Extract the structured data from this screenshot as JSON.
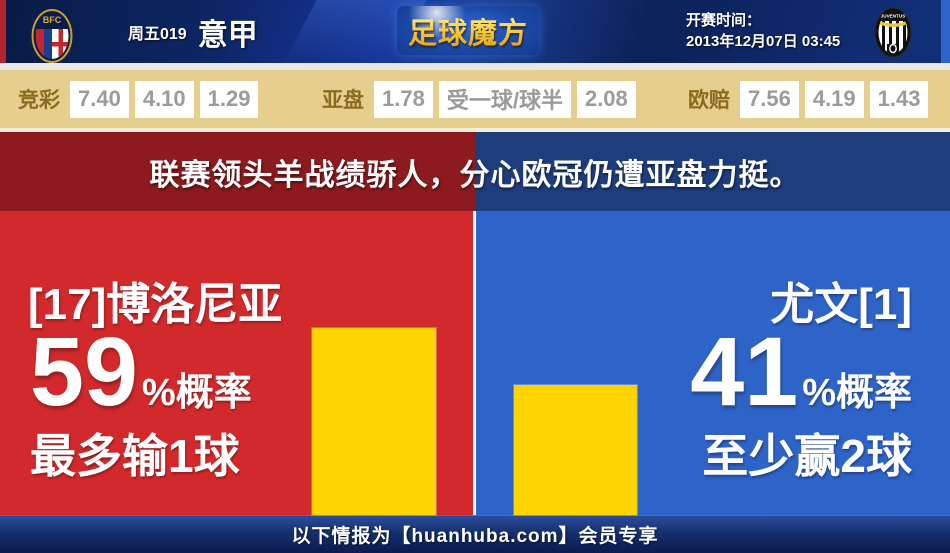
{
  "header": {
    "match_code": "周五019",
    "league": "意甲",
    "brand": "足球魔方",
    "kickoff_label": "开赛时间：",
    "kickoff_datetime": "2013年12月07日 03:45",
    "home_crest_text": "BFC",
    "away_crest_text": "JUVENTUS"
  },
  "odds_bar": {
    "sections": [
      {
        "label": "竞彩",
        "cells": [
          "7.40",
          "4.10",
          "1.29"
        ]
      },
      {
        "label": "亚盘",
        "cells": [
          "1.78",
          "受一球/球半",
          "2.08"
        ]
      },
      {
        "label": "欧赔",
        "cells": [
          "7.56",
          "4.19",
          "1.43"
        ]
      }
    ]
  },
  "headline": "联赛领头羊战绩骄人，分心欧冠仍遭亚盘力挺。",
  "panels": {
    "home": {
      "team": "[17]博洛尼亚",
      "percent": "59",
      "percent_suffix": "%概率",
      "prediction": "最多输1球",
      "bar_percent": 59
    },
    "away": {
      "team": "尤文[1]",
      "percent": "41",
      "percent_suffix": "%概率",
      "prediction": "至少赢2球",
      "bar_percent": 41
    }
  },
  "footer": {
    "text": "以下情报为【huanhuba.com】会员专享"
  },
  "colors": {
    "home_red": "#d22a2c",
    "away_blue": "#2e63c8",
    "banner_red": "#8c1a1e",
    "banner_blue": "#1e3d7c",
    "bar_yellow": "#ffd400",
    "odds_bg": "#e6cf8e",
    "odds_number_gray": "#9b9b9b",
    "odds_label_gold": "#8a6b20"
  },
  "chart_data": {
    "type": "bar",
    "categories": [
      "[17]博洛尼亚",
      "尤文[1]"
    ],
    "values": [
      59,
      41
    ],
    "title": "",
    "annotations": [
      "最多输1球",
      "至少赢2球"
    ],
    "ylim": [
      0,
      100
    ]
  }
}
